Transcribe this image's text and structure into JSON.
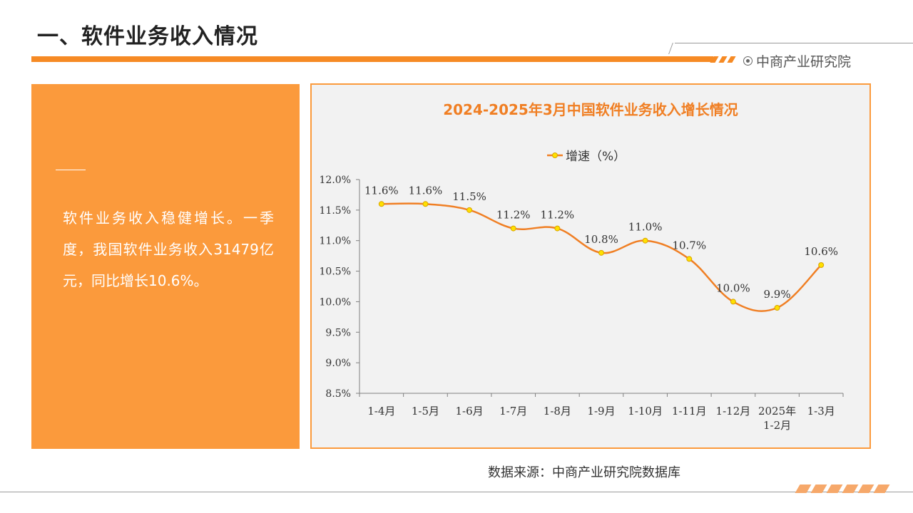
{
  "page": {
    "title": "一、软件业务收入情况",
    "brand": "中商产业研究院",
    "source": "数据来源：中商产业研究院数据库"
  },
  "summary": {
    "text": "软件业务收入稳健增长。一季度，我国软件业务收入31479亿元，同比增长10.6%。"
  },
  "colors": {
    "accent": "#f68a24",
    "panel": "#fb9a3c",
    "line": "#f07f24",
    "marker": "#ffe000"
  },
  "chart_data": {
    "type": "line",
    "title": "2024-2025年3月中国软件业务收入增长情况",
    "categories": [
      "1-4月",
      "1-5月",
      "1-6月",
      "1-7月",
      "1-8月",
      "1-9月",
      "1-10月",
      "1-11月",
      "1-12月",
      "2025年\n1-2月",
      "1-3月"
    ],
    "series": [
      {
        "name": "增速（%）",
        "values": [
          11.6,
          11.6,
          11.5,
          11.2,
          11.2,
          10.8,
          11.0,
          10.7,
          10.0,
          9.9,
          10.6
        ],
        "labels": [
          "11.6%",
          "11.6%",
          "11.5%",
          "11.2%",
          "11.2%",
          "10.8%",
          "11.0%",
          "10.7%",
          "10.0%",
          "9.9%",
          "10.6%"
        ]
      }
    ],
    "y_ticks": [
      "12.0%",
      "11.5%",
      "11.0%",
      "10.5%",
      "10.0%",
      "9.5%",
      "9.0%",
      "8.5%"
    ],
    "ylim": [
      8.5,
      12.0
    ],
    "ystep": 0.5,
    "legend": "top-center",
    "grid": false,
    "smooth": true
  }
}
